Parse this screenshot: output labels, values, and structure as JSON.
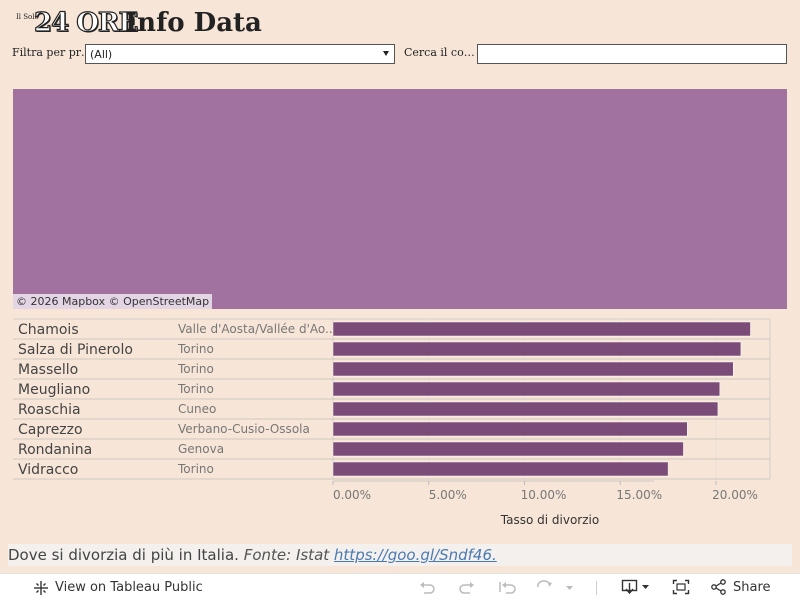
{
  "header": {
    "brand_small": "Il Sole",
    "brand_24": "24 ORE",
    "brand_info": "Info Data"
  },
  "filters": {
    "province_label": "Filtra per pr…",
    "province_value": "(All)",
    "search_label": "Cerca il co…",
    "search_value": ""
  },
  "map": {
    "attribution_mapbox": "© 2026 Mapbox",
    "attribution_osm": "© OpenStreetMap",
    "fill_color": "#a172a0"
  },
  "chart_data": {
    "type": "bar",
    "orientation": "horizontal",
    "categories": [
      "Chamois",
      "Salza di Pinerolo",
      "Massello",
      "Meugliano",
      "Roaschia",
      "Caprezzo",
      "Rondanina",
      "Vidracco"
    ],
    "provinces": [
      "Valle d'Aosta/Vallée d'Ao..",
      "Torino",
      "Torino",
      "Torino",
      "Cuneo",
      "Verbano-Cusio-Ossola",
      "Genova",
      "Torino"
    ],
    "values": [
      21.8,
      21.3,
      20.9,
      20.2,
      20.1,
      18.5,
      18.3,
      17.5
    ],
    "xlabel": "Tasso di divorzio",
    "xlim": [
      0,
      22.5
    ],
    "ticks": [
      0,
      5,
      10,
      15,
      20
    ],
    "tick_labels": [
      "0.00%",
      "5.00%",
      "10.00%",
      "15.00%",
      "20.00%"
    ],
    "bar_color": "#7b4c78"
  },
  "caption": {
    "text": "Dove si divorzia di più in Italia.",
    "source": "Fonte: Istat",
    "link": "https://goo.gl/Sndf46."
  },
  "footer": {
    "view_label": "View on Tableau Public",
    "share_label": "Share"
  }
}
